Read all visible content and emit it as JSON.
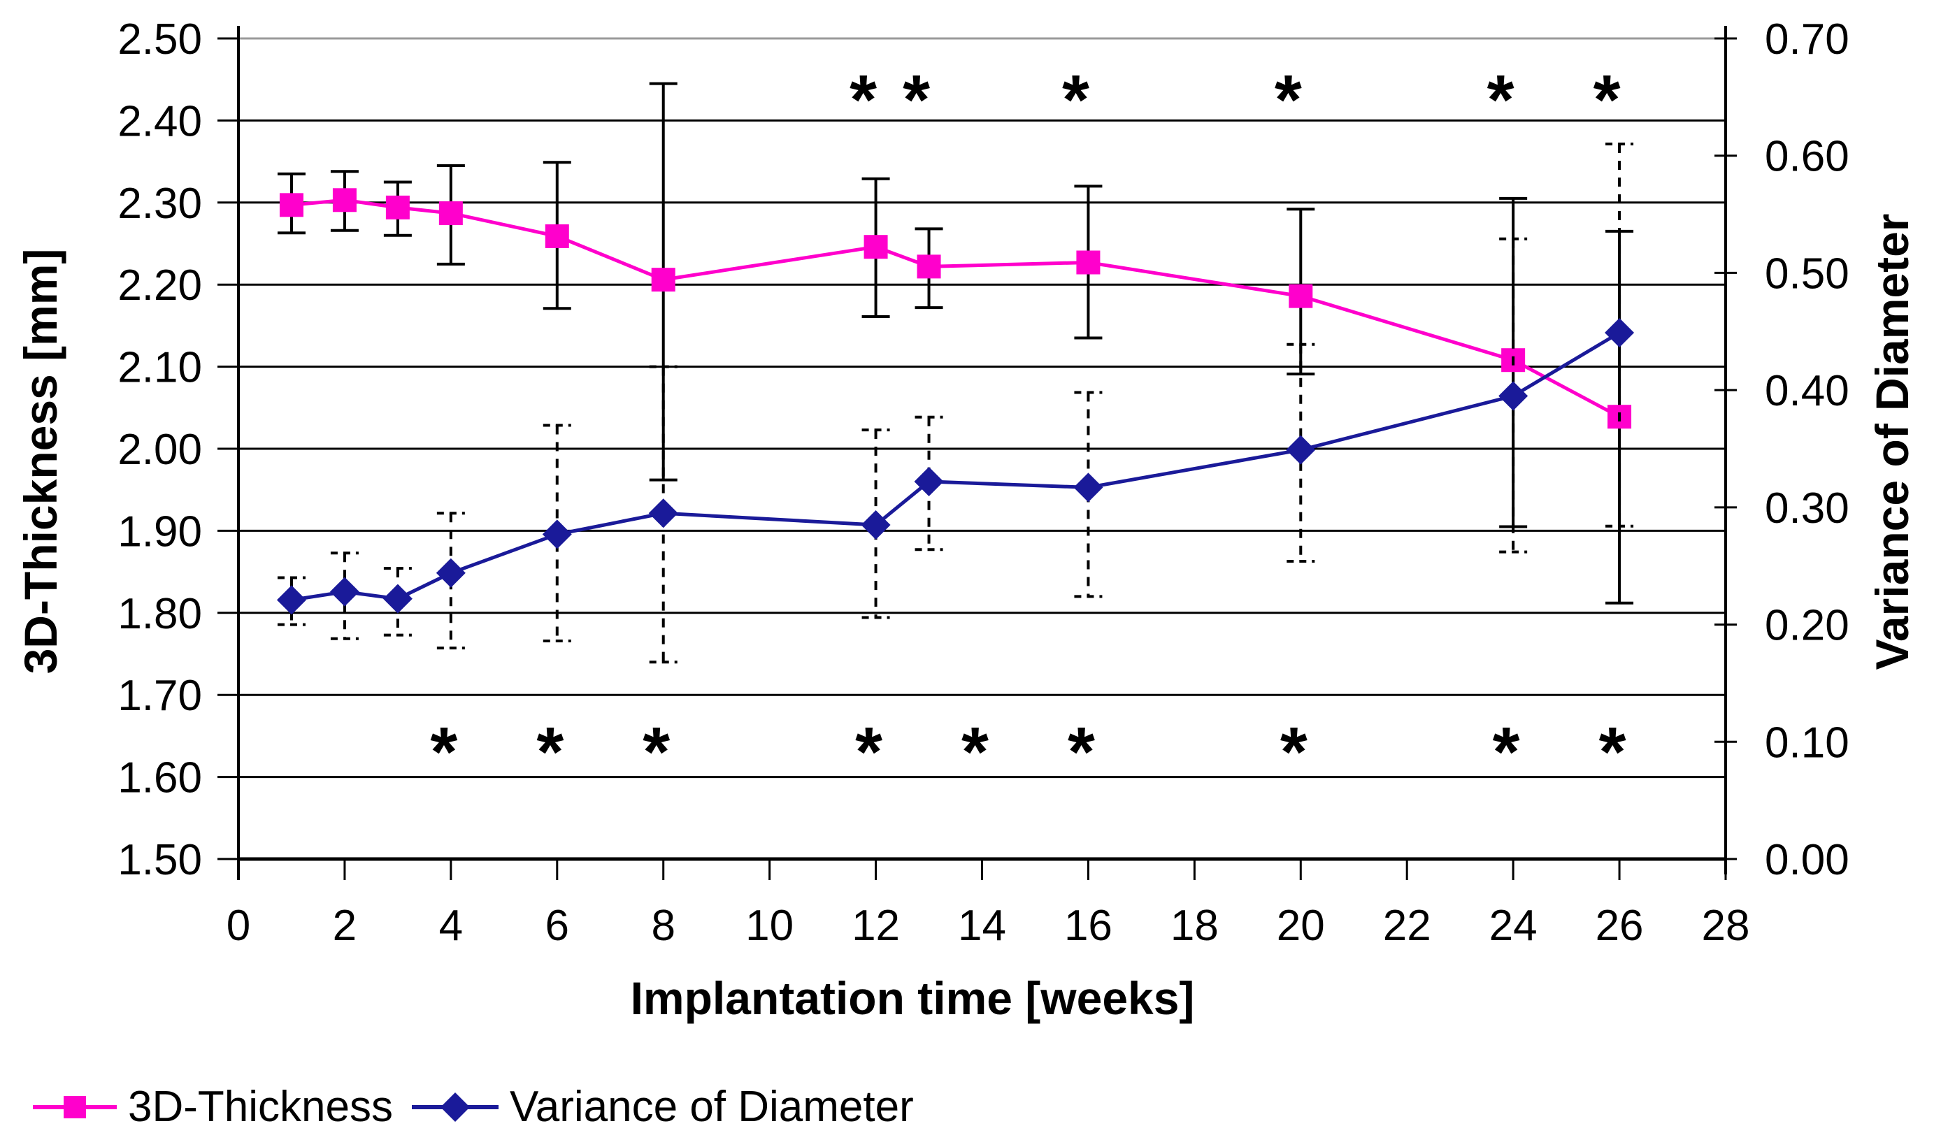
{
  "chart_data": {
    "type": "line",
    "title": "",
    "grid": "horizontal",
    "legend_position": "bottom-left",
    "x_axis": {
      "label": "Implantation time [weeks]",
      "min": 0,
      "max": 28,
      "tick_labels": [
        "0",
        "2",
        "4",
        "6",
        "8",
        "10",
        "12",
        "14",
        "16",
        "18",
        "20",
        "22",
        "24",
        "26",
        "28"
      ]
    },
    "y_left": {
      "label": "3D-Thickness [mm]",
      "min": 1.5,
      "max": 2.5,
      "tick_step": 0.1,
      "tick_labels": [
        "2.50",
        "2.40",
        "2.30",
        "2.20",
        "2.10",
        "2.00",
        "1.90",
        "1.80",
        "1.70",
        "1.60",
        "1.50"
      ]
    },
    "y_right": {
      "label": "Variance of Diameter",
      "min": 0.0,
      "max": 0.7,
      "tick_step": 0.1,
      "tick_labels": [
        "0.70",
        "0.60",
        "0.50",
        "0.40",
        "0.30",
        "0.20",
        "0.10",
        "0.00"
      ]
    },
    "series": [
      {
        "name": "3D-Thickness",
        "axis": "left",
        "color": "#FF00CC",
        "marker": "square",
        "error_style": "solid",
        "points": [
          {
            "week": 1,
            "value": 2.297,
            "err_hi": 2.335,
            "err_lo": 2.263
          },
          {
            "week": 2,
            "value": 2.303,
            "err_hi": 2.338,
            "err_lo": 2.266
          },
          {
            "week": 3,
            "value": 2.294,
            "err_hi": 2.325,
            "err_lo": 2.26
          },
          {
            "week": 4,
            "value": 2.287,
            "err_hi": 2.345,
            "err_lo": 2.225
          },
          {
            "week": 6,
            "value": 2.259,
            "err_hi": 2.349,
            "err_lo": 2.171
          },
          {
            "week": 8,
            "value": 2.206,
            "err_hi": 2.445,
            "err_lo": 1.962
          },
          {
            "week": 12,
            "value": 2.246,
            "err_hi": 2.329,
            "err_lo": 2.161
          },
          {
            "week": 13,
            "value": 2.222,
            "err_hi": 2.268,
            "err_lo": 2.172
          },
          {
            "week": 16,
            "value": 2.227,
            "err_hi": 2.32,
            "err_lo": 2.135
          },
          {
            "week": 20,
            "value": 2.186,
            "err_hi": 2.292,
            "err_lo": 2.091
          },
          {
            "week": 24,
            "value": 2.108,
            "err_hi": 2.305,
            "err_lo": 1.905
          },
          {
            "week": 26,
            "value": 2.039,
            "err_hi": 2.265,
            "err_lo": 1.812
          }
        ]
      },
      {
        "name": "Variance of Diameter",
        "axis": "right",
        "color": "#1A1A99",
        "marker": "diamond",
        "error_style": "dashed",
        "points": [
          {
            "week": 1,
            "value": 0.221,
            "err_hi": 0.24,
            "err_lo": 0.2
          },
          {
            "week": 2,
            "value": 0.228,
            "err_hi": 0.261,
            "err_lo": 0.188
          },
          {
            "week": 3,
            "value": 0.222,
            "err_hi": 0.248,
            "err_lo": 0.191
          },
          {
            "week": 4,
            "value": 0.244,
            "err_hi": 0.295,
            "err_lo": 0.18
          },
          {
            "week": 6,
            "value": 0.277,
            "err_hi": 0.37,
            "err_lo": 0.186
          },
          {
            "week": 8,
            "value": 0.295,
            "err_hi": 0.42,
            "err_lo": 0.168
          },
          {
            "week": 12,
            "value": 0.285,
            "err_hi": 0.366,
            "err_lo": 0.206
          },
          {
            "week": 13,
            "value": 0.322,
            "err_hi": 0.377,
            "err_lo": 0.264
          },
          {
            "week": 16,
            "value": 0.317,
            "err_hi": 0.398,
            "err_lo": 0.224
          },
          {
            "week": 20,
            "value": 0.349,
            "err_hi": 0.439,
            "err_lo": 0.254
          },
          {
            "week": 24,
            "value": 0.395,
            "err_hi": 0.529,
            "err_lo": 0.262
          },
          {
            "week": 26,
            "value": 0.449,
            "err_hi": 0.61,
            "err_lo": 0.284
          }
        ]
      }
    ],
    "significance": {
      "symbol": "*",
      "top_row_weeks": [
        12,
        13,
        16,
        20,
        24,
        26
      ],
      "bottom_row_weeks": [
        4,
        6,
        8,
        12,
        14,
        16,
        20,
        24,
        26
      ]
    }
  },
  "legend": {
    "items": [
      {
        "label": "3D-Thickness"
      },
      {
        "label": "Variance of Diameter"
      }
    ]
  }
}
